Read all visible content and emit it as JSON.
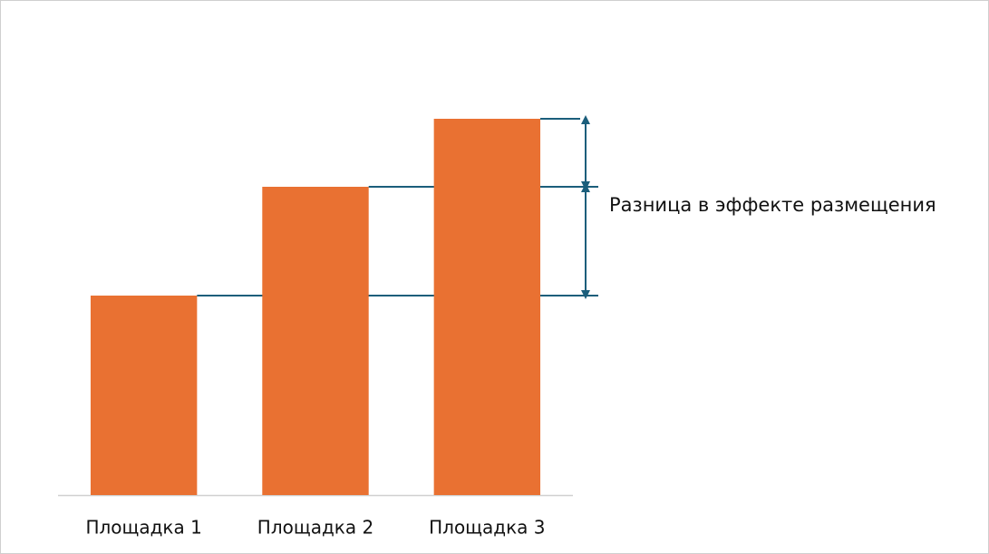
{
  "chart_data": {
    "type": "bar",
    "categories": [
      "Площадка 1",
      "Площадка 2",
      "Площадка 3"
    ],
    "values": [
      220,
      340,
      415
    ],
    "color": "#e97132",
    "ylim": [
      0,
      500
    ],
    "annotation": "Разница в эффекте размещения"
  }
}
